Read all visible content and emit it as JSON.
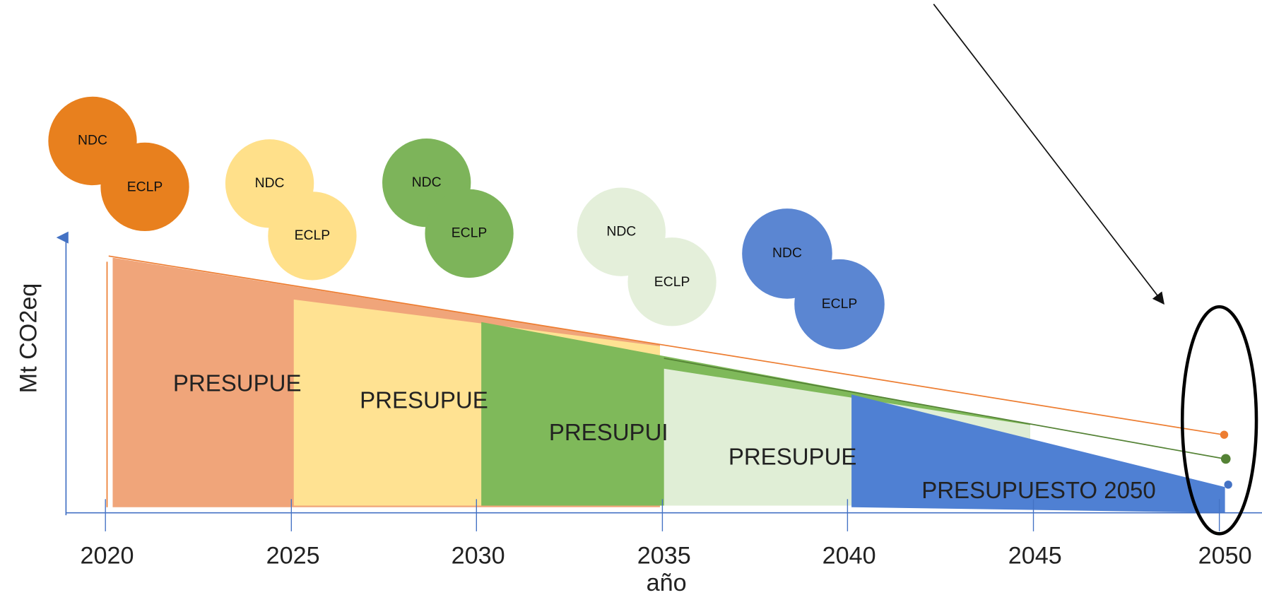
{
  "axes": {
    "y_label": "Mt CO2eq",
    "x_label": "año"
  },
  "x_ticks": [
    2020,
    2025,
    2030,
    2035,
    2040,
    2045,
    2050
  ],
  "budgets": [
    {
      "label": "PRESUPUE"
    },
    {
      "label": "PRESUPUE"
    },
    {
      "label": "PRESUPUI"
    },
    {
      "label": "PRESUPUE"
    },
    {
      "label": "PRESUPUESTO 2050"
    }
  ],
  "circles": [
    {
      "top": "NDC",
      "bottom": "ECLP"
    },
    {
      "top": "NDC",
      "bottom": "ECLP"
    },
    {
      "top": "NDC",
      "bottom": "ECLP"
    },
    {
      "top": "NDC",
      "bottom": "ECLP"
    },
    {
      "top": "NDC",
      "bottom": "ECLP"
    }
  ]
}
